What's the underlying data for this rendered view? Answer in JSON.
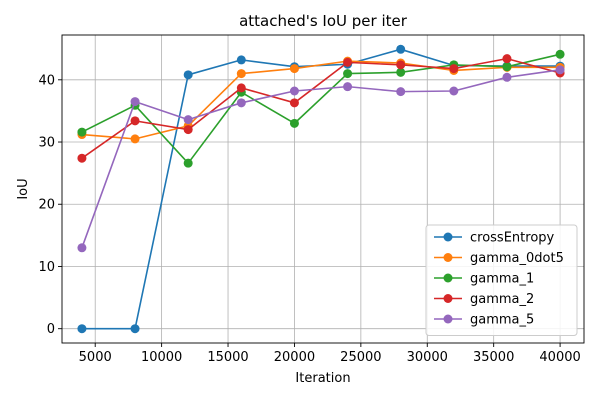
{
  "chart_data": {
    "type": "line",
    "title": "attached's IoU per iter",
    "xlabel": "Iteration",
    "ylabel": "IoU",
    "xlim": [
      2500,
      41800
    ],
    "ylim": [
      -2.3,
      47.2
    ],
    "xticks": [
      5000,
      10000,
      15000,
      20000,
      25000,
      30000,
      35000,
      40000
    ],
    "yticks": [
      0,
      10,
      20,
      30,
      40
    ],
    "grid": true,
    "legend_position": "lower-right",
    "x": [
      4000,
      8000,
      12000,
      16000,
      20000,
      24000,
      28000,
      32000,
      36000,
      40000
    ],
    "series": [
      {
        "name": "crossEntropy",
        "color": "#1f77b4",
        "values": [
          0,
          0,
          40.8,
          43.2,
          42.1,
          42.5,
          44.9,
          42.3,
          42.2,
          42.2
        ]
      },
      {
        "name": "gamma_0dot5",
        "color": "#ff7f0e",
        "values": [
          31.2,
          30.5,
          32.6,
          41.0,
          41.8,
          43.0,
          42.7,
          41.5,
          42.0,
          42.0
        ]
      },
      {
        "name": "gamma_1",
        "color": "#2ca02c",
        "values": [
          31.6,
          35.9,
          26.6,
          38.0,
          33.0,
          41.0,
          41.2,
          42.4,
          42.1,
          44.1
        ]
      },
      {
        "name": "gamma_2",
        "color": "#d62728",
        "values": [
          27.4,
          33.4,
          32.0,
          38.7,
          36.3,
          42.8,
          42.4,
          41.8,
          43.4,
          41.1
        ]
      },
      {
        "name": "gamma_5",
        "color": "#9467bd",
        "values": [
          13.0,
          36.5,
          33.6,
          36.3,
          38.2,
          38.9,
          38.1,
          38.2,
          40.4,
          41.6
        ]
      }
    ]
  }
}
